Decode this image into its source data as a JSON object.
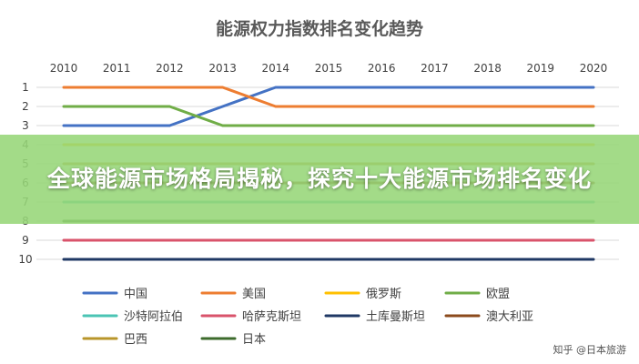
{
  "chart_data": {
    "type": "line",
    "title": "能源权力指数排名变化趋势",
    "x": [
      "2010",
      "2011",
      "2012",
      "2013",
      "2014",
      "2015",
      "2016",
      "2017",
      "2018",
      "2019",
      "2020"
    ],
    "y_ticks": [
      "1",
      "2",
      "3",
      "4",
      "5",
      "6",
      "7",
      "8",
      "9",
      "10"
    ],
    "ylim": [
      1,
      10
    ],
    "y_inverted": true,
    "grid": true,
    "legend_position": "bottom",
    "series": [
      {
        "name": "中国",
        "color": "#4472c4",
        "values": [
          3,
          3,
          3,
          2,
          1,
          1,
          1,
          1,
          1,
          1,
          1
        ]
      },
      {
        "name": "美国",
        "color": "#ed7d31",
        "values": [
          1,
          1,
          1,
          1,
          2,
          2,
          2,
          2,
          2,
          2,
          2
        ]
      },
      {
        "name": "俄罗斯",
        "color": "#ffc000",
        "values": [
          4,
          4,
          4,
          4,
          4,
          4,
          4,
          4,
          4,
          4,
          4
        ]
      },
      {
        "name": "欧盟",
        "color": "#70ad47",
        "values": [
          2,
          2,
          2,
          3,
          3,
          3,
          3,
          3,
          3,
          3,
          3
        ]
      },
      {
        "name": "沙特阿拉伯",
        "color": "#4bc4b4",
        "values": [
          7,
          7,
          7,
          7,
          7,
          7,
          7,
          7,
          7,
          7,
          7
        ]
      },
      {
        "name": "哈萨克斯坦",
        "color": "#d9536b",
        "values": [
          9,
          9,
          9,
          9,
          9,
          9,
          9,
          9,
          9,
          9,
          9
        ]
      },
      {
        "name": "土库曼斯坦",
        "color": "#1f3864",
        "values": [
          10,
          10,
          10,
          10,
          10,
          10,
          10,
          10,
          10,
          10,
          10
        ]
      },
      {
        "name": "澳大利亚",
        "color": "#8b4a1c",
        "values": [
          6,
          6,
          6,
          6,
          6,
          6,
          6,
          6,
          6,
          6,
          6
        ]
      },
      {
        "name": "巴西",
        "color": "#b8952a",
        "values": [
          5,
          5,
          5,
          5,
          5,
          5,
          5,
          5,
          5,
          5,
          5
        ]
      },
      {
        "name": "日本",
        "color": "#3d6b2c",
        "values": [
          8,
          8,
          8,
          8,
          8,
          8,
          8,
          8,
          8,
          8,
          8
        ]
      }
    ]
  },
  "banner": {
    "text": "全球能源市场格局揭秘，探究十大能源市场排名变化"
  },
  "watermark": "知乎 @日本旅游"
}
